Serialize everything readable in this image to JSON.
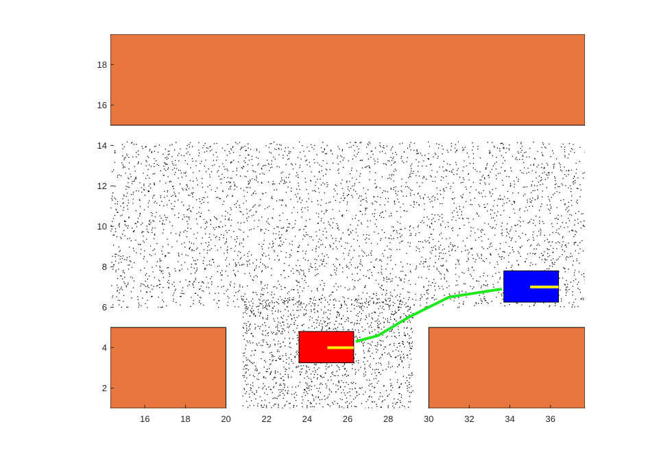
{
  "chart_data": {
    "type": "scatter",
    "title": "",
    "xlabel": "",
    "ylabel": "",
    "xlim": [
      14.3,
      37.7
    ],
    "ylim": [
      1.0,
      19.5
    ],
    "x_ticks": [
      16,
      18,
      20,
      22,
      24,
      26,
      28,
      30,
      32,
      34,
      36
    ],
    "y_ticks": [
      2,
      4,
      6,
      8,
      10,
      12,
      14,
      16,
      18
    ],
    "grid": false,
    "legend": "none",
    "obstacles": [
      {
        "name": "top-wall",
        "x": [
          14.3,
          37.7
        ],
        "y": [
          15.0,
          19.5
        ]
      },
      {
        "name": "bottom-left-block",
        "x": [
          14.3,
          20.0
        ],
        "y": [
          1.0,
          5.0
        ]
      },
      {
        "name": "bottom-right-block",
        "x": [
          30.0,
          37.7
        ],
        "y": [
          1.0,
          5.0
        ]
      }
    ],
    "particle_regions": [
      {
        "name": "corridor",
        "x": [
          14.3,
          37.7
        ],
        "y": [
          6.0,
          14.2
        ],
        "count": 3600
      },
      {
        "name": "lower-slot",
        "x": [
          20.8,
          29.2
        ],
        "y": [
          1.0,
          6.5
        ],
        "count": 1400
      }
    ],
    "path": {
      "x": [
        26.4,
        27.5,
        29.0,
        31.0,
        33.6
      ],
      "y": [
        4.3,
        4.6,
        5.5,
        6.5,
        6.9
      ]
    },
    "start_vehicle": {
      "x": [
        23.6,
        26.3
      ],
      "y": [
        3.25,
        4.8
      ],
      "heading_line": {
        "x": [
          25.0,
          26.3
        ],
        "y": [
          4.0,
          4.0
        ]
      }
    },
    "goal_vehicle": {
      "x": [
        33.7,
        36.4
      ],
      "y": [
        6.25,
        7.8
      ],
      "heading_line": {
        "x": [
          35.0,
          36.4
        ],
        "y": [
          7.0,
          7.0
        ]
      }
    },
    "colors": {
      "obstacle": "#e8773f",
      "start_vehicle": "#ff0000",
      "goal_vehicle": "#0000ff",
      "heading_line": "#ffeb0f",
      "path": "#1fe81f",
      "particles": "#000000"
    }
  }
}
